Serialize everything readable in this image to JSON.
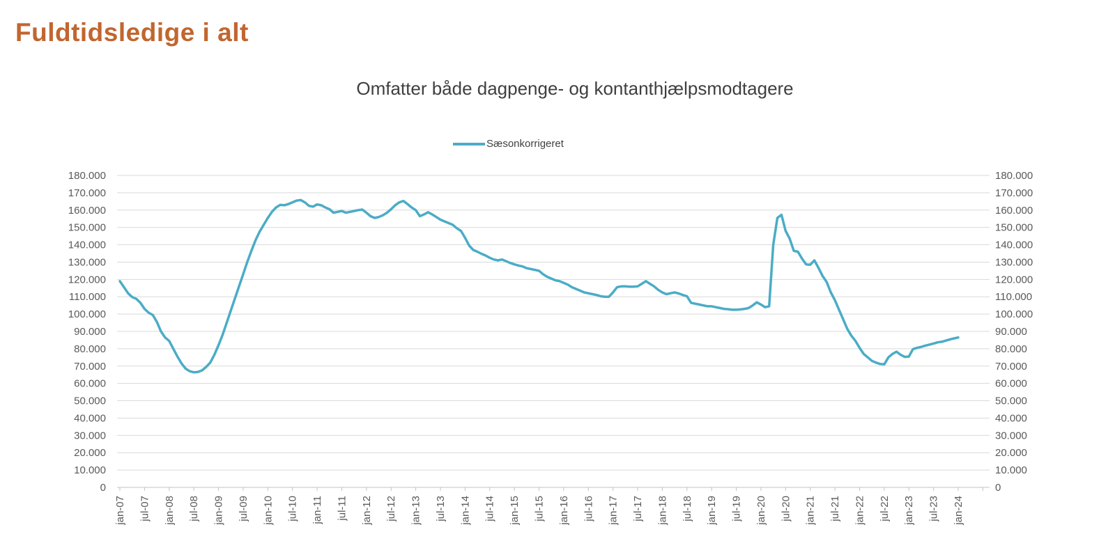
{
  "header": {
    "title": "Fuldtidsledige i alt"
  },
  "colors": {
    "title": "#C1662F",
    "subtitle": "#3F3F3F",
    "series_line": "#4BACC6",
    "axis_text": "#595959",
    "gridline": "#D9D9D9",
    "axis_line": "#C3C3C3"
  },
  "chart_data": {
    "type": "line",
    "title": "Omfatter både dagpenge- og kontanthjælpsmodtagere",
    "legend_position": "top-center",
    "grid": "horizontal-only",
    "dual_y_axis": true,
    "ylim": [
      0,
      180000
    ],
    "y_tick_step": 10000,
    "y_tick_labels_bottom_to_top": [
      "0",
      "10.000",
      "20.000",
      "30.000",
      "40.000",
      "50.000",
      "60.000",
      "70.000",
      "80.000",
      "90.000",
      "100.000",
      "110.000",
      "120.000",
      "130.000",
      "140.000",
      "150.000",
      "160.000",
      "170.000",
      "180.000"
    ],
    "x_first": "jan-07",
    "x_last": "jan-24",
    "months_per_tick": 6,
    "x_tick_labels": [
      "jan-07",
      "jul-07",
      "jan-08",
      "jul-08",
      "jan-09",
      "jul-09",
      "jan-10",
      "jul-10",
      "jan-11",
      "jul-11",
      "jan-12",
      "jul-12",
      "jan-13",
      "jul-13",
      "jan-14",
      "jul-14",
      "jan-15",
      "jul-15",
      "jan-16",
      "jul-16",
      "jan-17",
      "jul-17",
      "jan-18",
      "jul-18",
      "jan-19",
      "jul-19",
      "jan-20",
      "jul-20",
      "jan-21",
      "jul-21",
      "jan-22",
      "jul-22",
      "jan-23",
      "jul-23",
      "jan-24"
    ],
    "series": [
      {
        "name": "Sæsonkorrigeret",
        "color": "#4BACC6",
        "values": [
          119000,
          115500,
          112000,
          109800,
          108800,
          106500,
          103000,
          100800,
          99500,
          95500,
          90000,
          86500,
          84500,
          80000,
          75500,
          71500,
          68500,
          67000,
          66400,
          66600,
          67500,
          69500,
          72000,
          76500,
          82000,
          88000,
          95000,
          102000,
          109000,
          116000,
          123000,
          130000,
          136500,
          142500,
          147500,
          151500,
          155500,
          159000,
          161500,
          163000,
          162800,
          163500,
          164500,
          165500,
          165800,
          164500,
          162500,
          162000,
          163300,
          162800,
          161500,
          160500,
          158500,
          159000,
          159500,
          158500,
          159000,
          159500,
          160000,
          160300,
          158500,
          156500,
          155500,
          156000,
          157000,
          158500,
          160500,
          162800,
          164500,
          165300,
          163500,
          161500,
          160000,
          156500,
          157500,
          158800,
          157500,
          156000,
          154500,
          153500,
          152500,
          151500,
          149500,
          148000,
          144000,
          139500,
          137000,
          136000,
          134800,
          133800,
          132500,
          131500,
          131000,
          131500,
          130500,
          129500,
          128700,
          128000,
          127500,
          126500,
          126000,
          125500,
          125000,
          123000,
          121500,
          120500,
          119500,
          119000,
          118000,
          117000,
          115500,
          114500,
          113500,
          112500,
          112000,
          111500,
          111000,
          110300,
          110000,
          110000,
          112500,
          115500,
          116000,
          116000,
          115800,
          115800,
          116000,
          117500,
          119000,
          117500,
          116000,
          114000,
          112500,
          111500,
          112000,
          112500,
          111900,
          111000,
          110300,
          106500,
          106000,
          105500,
          105000,
          104500,
          104500,
          104000,
          103500,
          103000,
          102800,
          102500,
          102500,
          102700,
          103000,
          103500,
          105000,
          106800,
          105500,
          104000,
          104500,
          140000,
          155500,
          157300,
          148000,
          143500,
          136500,
          136000,
          132000,
          128700,
          128500,
          131000,
          126700,
          122000,
          118500,
          112500,
          108000,
          102500,
          97000,
          91500,
          87500,
          84500,
          80500,
          77000,
          75000,
          73000,
          72000,
          71200,
          71000,
          75000,
          77000,
          78300,
          76500,
          75300,
          75500,
          79800,
          80500,
          81100,
          81800,
          82400,
          83000,
          83700,
          84000,
          84700,
          85400,
          86000,
          86500
        ]
      }
    ]
  }
}
